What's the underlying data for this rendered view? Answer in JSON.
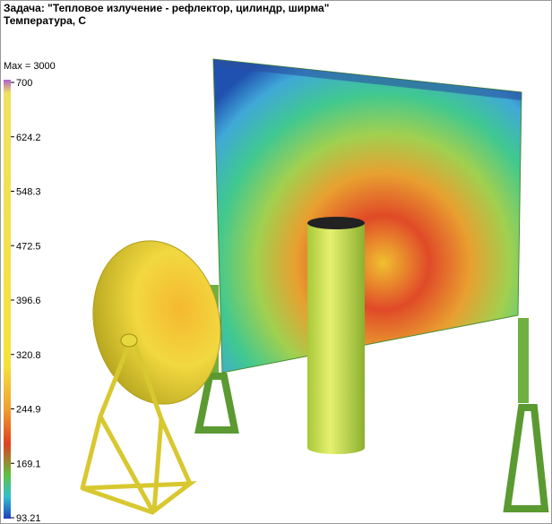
{
  "header": {
    "title": "Задача: \"Тепловое излучение - рефлектор, цилиндр, ширма\"",
    "subtitle": "Температура, С"
  },
  "legend": {
    "max_label": "Max = 3000",
    "ticks": [
      "700",
      "624.2",
      "548.3",
      "472.5",
      "396.6",
      "320.8",
      "244.9",
      "169.1",
      "93.21"
    ]
  }
}
